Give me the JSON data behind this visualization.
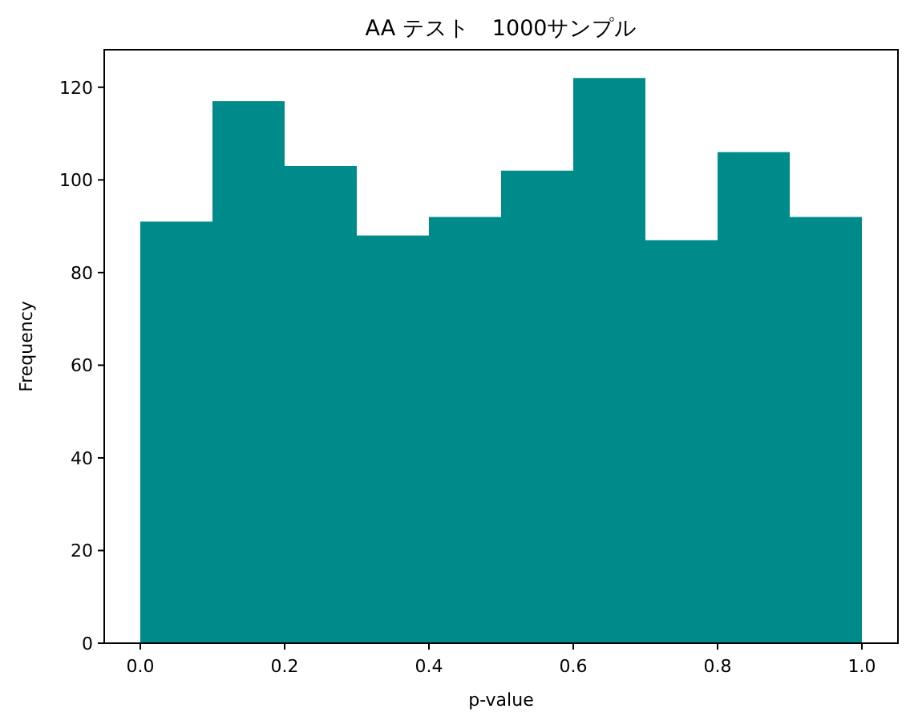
{
  "chart_data": {
    "type": "histogram",
    "title": "AA テスト　1000サンプル",
    "xlabel": "p-value",
    "ylabel": "Frequency",
    "bins": [
      0,
      0.1,
      0.2,
      0.3,
      0.4,
      0.5,
      0.6,
      0.7,
      0.8,
      0.9,
      1.0
    ],
    "values": [
      91,
      117,
      103,
      88,
      92,
      102,
      122,
      87,
      106,
      92
    ],
    "color": "#008b8b",
    "xlim": [
      -0.05,
      1.05
    ],
    "ylim": [
      0,
      128.1
    ],
    "xticks": [
      {
        "value": 0,
        "label": "0.0"
      },
      0.2,
      0.4,
      0.6,
      0.8,
      {
        "value": 1,
        "label": "1.0"
      }
    ],
    "yticks": [
      0,
      20,
      40,
      60,
      80,
      100,
      120
    ]
  }
}
